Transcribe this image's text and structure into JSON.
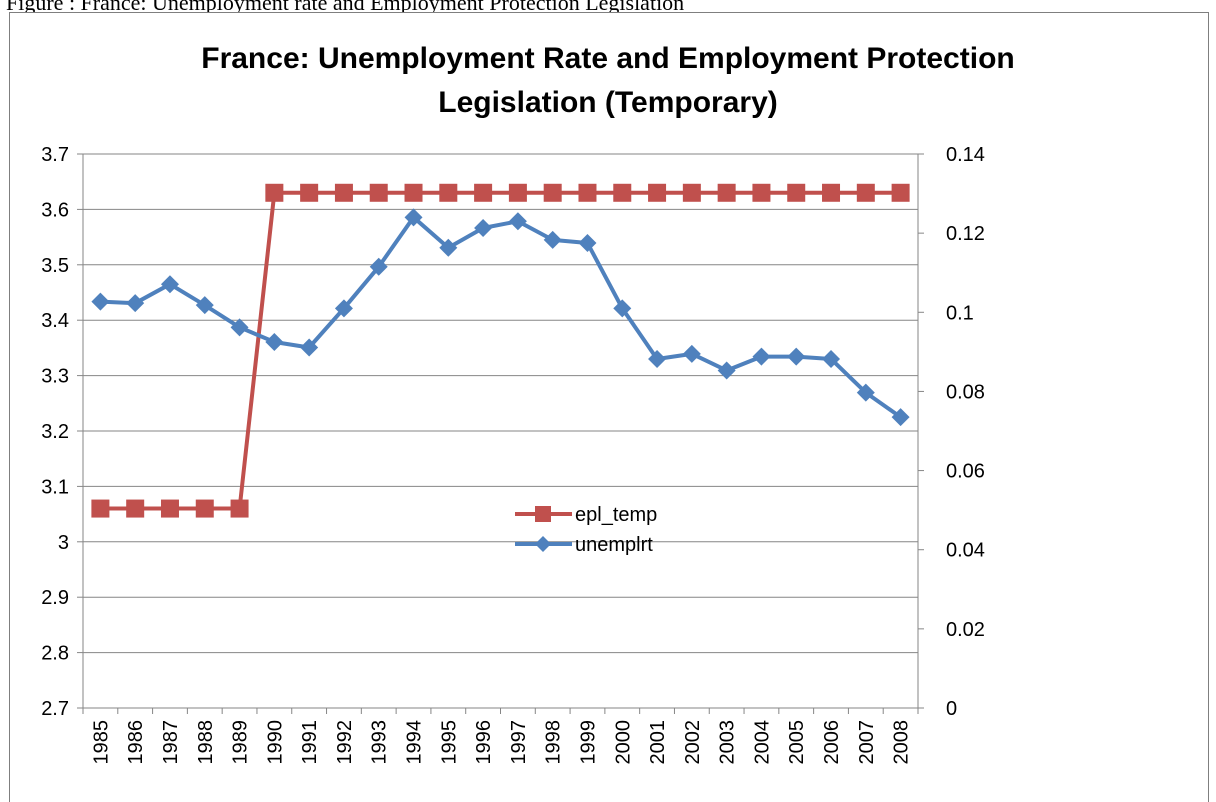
{
  "caption": "Figure : France: Unemployment rate and Employment Protection Legislation",
  "chart_data": {
    "type": "line",
    "title_lines": [
      "France: Unemployment Rate and Employment Protection",
      "Legislation (Temporary)"
    ],
    "categories": [
      "1985",
      "1986",
      "1987",
      "1988",
      "1989",
      "1990",
      "1991",
      "1992",
      "1993",
      "1994",
      "1995",
      "1996",
      "1997",
      "1998",
      "1999",
      "2000",
      "2001",
      "2002",
      "2003",
      "2004",
      "2005",
      "2006",
      "2007",
      "2008"
    ],
    "series": [
      {
        "name": "epl_temp",
        "axis": "left",
        "color": "#c0504d",
        "marker": "square",
        "values": [
          3.06,
          3.06,
          3.06,
          3.06,
          3.06,
          3.63,
          3.63,
          3.63,
          3.63,
          3.63,
          3.63,
          3.63,
          3.63,
          3.63,
          3.63,
          3.63,
          3.63,
          3.63,
          3.63,
          3.63,
          3.63,
          3.63,
          3.63,
          3.63
        ]
      },
      {
        "name": "unemplrt",
        "axis": "right",
        "color": "#4f81bd",
        "marker": "diamond",
        "values": [
          0.1027,
          0.1023,
          0.1071,
          0.1018,
          0.0962,
          0.0925,
          0.0911,
          0.101,
          0.1115,
          0.124,
          0.1163,
          0.1213,
          0.123,
          0.1183,
          0.1175,
          0.101,
          0.0882,
          0.0895,
          0.0853,
          0.0888,
          0.0888,
          0.0882,
          0.0797,
          0.0735
        ]
      }
    ],
    "y_left": {
      "range": [
        2.7,
        3.7
      ],
      "ticks": [
        "3.7",
        "3.6",
        "3.5",
        "3.4",
        "3.3",
        "3.2",
        "3.1",
        "3",
        "2.9",
        "2.8",
        "2.7"
      ]
    },
    "y_right": {
      "range": [
        0,
        0.14
      ],
      "ticks": [
        "0.14",
        "0.12",
        "0.1",
        "0.08",
        "0.06",
        "0.04",
        "0.02",
        "0"
      ]
    },
    "grid": true,
    "legend_position": "center"
  }
}
